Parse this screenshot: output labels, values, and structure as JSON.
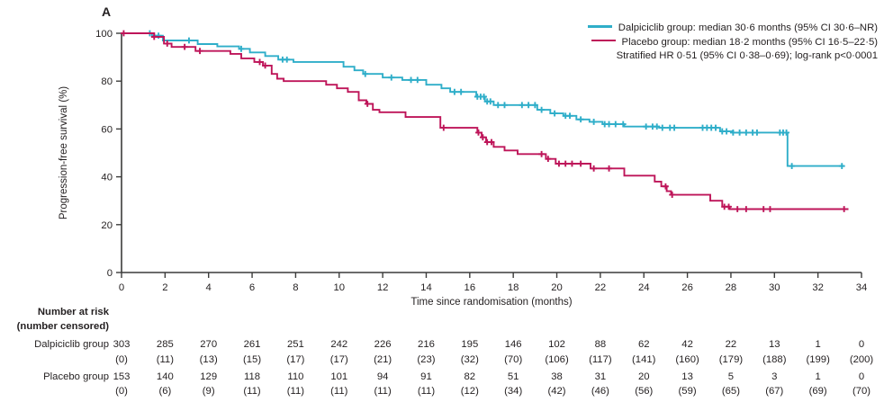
{
  "panel_label": "A",
  "colors": {
    "dalpiciclib": "#2FAEC9",
    "placebo": "#BE1559",
    "axis": "#3c3c3b",
    "text": "#231f20"
  },
  "legend": {
    "line1": "Dalpiciclib group: median 30·6 months (95% CI 30·6–NR)",
    "line2": "Placebo group: median 18·2 months (95% CI 16·5–22·5)",
    "line3": "Stratified HR 0·51 (95% CI 0·38–0·69); log-rank p<0·0001"
  },
  "axes": {
    "y_label": "Progression-free survival (%)",
    "x_label": "Time since randomisation (months)",
    "y_ticks": [
      0,
      20,
      40,
      60,
      80,
      100
    ],
    "x_ticks": [
      0,
      2,
      4,
      6,
      8,
      10,
      12,
      14,
      16,
      18,
      20,
      22,
      24,
      26,
      28,
      30,
      32,
      34
    ],
    "x_range": [
      0,
      34
    ],
    "y_range": [
      0,
      100
    ]
  },
  "chart_data": {
    "type": "line",
    "subtype": "kaplan-meier-step",
    "title": "",
    "xlabel": "Time since randomisation (months)",
    "ylabel": "Progression-free survival (%)",
    "xlim": [
      0,
      34
    ],
    "ylim": [
      0,
      100
    ],
    "grid": false,
    "legend_position": "top-right",
    "series": [
      {
        "name": "Dalpiciclib group",
        "color": "#2FAEC9",
        "steps": [
          [
            0,
            100
          ],
          [
            1.4,
            99
          ],
          [
            1.9,
            97
          ],
          [
            3.5,
            95.5
          ],
          [
            4.4,
            94.5
          ],
          [
            5.4,
            93.5
          ],
          [
            5.9,
            92
          ],
          [
            6.6,
            90.5
          ],
          [
            7.2,
            89
          ],
          [
            7.9,
            88
          ],
          [
            10.2,
            86
          ],
          [
            10.7,
            84.5
          ],
          [
            11.1,
            83
          ],
          [
            12,
            81.5
          ],
          [
            12.9,
            80.5
          ],
          [
            14,
            78.5
          ],
          [
            14.7,
            77
          ],
          [
            15.1,
            75.5
          ],
          [
            16.3,
            73.5
          ],
          [
            16.7,
            71.5
          ],
          [
            17.1,
            70
          ],
          [
            19.1,
            68
          ],
          [
            19.7,
            66.5
          ],
          [
            20.3,
            65.5
          ],
          [
            20.9,
            64
          ],
          [
            21.5,
            63
          ],
          [
            22.1,
            62
          ],
          [
            23.1,
            61
          ],
          [
            24.7,
            60.5
          ],
          [
            27.5,
            59
          ],
          [
            28.1,
            58.5
          ],
          [
            30.6,
            44.5
          ],
          [
            33.2,
            44.5
          ]
        ],
        "censor_times": [
          1.3,
          1.7,
          3.1,
          5.5,
          7.4,
          7.6,
          11.2,
          12.4,
          13.3,
          13.6,
          15.3,
          15.6,
          16.35,
          16.5,
          16.65,
          16.8,
          16.95,
          17.3,
          17.6,
          18.4,
          18.7,
          19.0,
          19.3,
          19.9,
          20.4,
          20.6,
          21.1,
          21.7,
          22.2,
          22.4,
          22.7,
          23.05,
          24.1,
          24.4,
          24.6,
          24.85,
          25.2,
          25.4,
          26.7,
          26.9,
          27.1,
          27.3,
          27.6,
          27.8,
          28.1,
          28.4,
          28.7,
          29.0,
          29.2,
          30.25,
          30.4,
          30.55,
          30.8,
          33.1
        ]
      },
      {
        "name": "Placebo group",
        "color": "#BE1559",
        "steps": [
          [
            0,
            100
          ],
          [
            1.5,
            98.5
          ],
          [
            1.95,
            95.7
          ],
          [
            2.3,
            94.3
          ],
          [
            3.4,
            92.6
          ],
          [
            5.0,
            91.4
          ],
          [
            5.5,
            89.5
          ],
          [
            6.1,
            88
          ],
          [
            6.5,
            86.5
          ],
          [
            6.9,
            83
          ],
          [
            7.15,
            81
          ],
          [
            7.45,
            80
          ],
          [
            9.4,
            78.5
          ],
          [
            9.9,
            77
          ],
          [
            10.4,
            75.5
          ],
          [
            10.9,
            72
          ],
          [
            11.25,
            70.5
          ],
          [
            11.55,
            68
          ],
          [
            11.85,
            67
          ],
          [
            13.05,
            65
          ],
          [
            14.65,
            60.5
          ],
          [
            16.35,
            58.5
          ],
          [
            16.55,
            56.5
          ],
          [
            16.75,
            54.5
          ],
          [
            17.1,
            52.5
          ],
          [
            17.6,
            51
          ],
          [
            18.2,
            49.5
          ],
          [
            19.5,
            47.5
          ],
          [
            19.95,
            45.5
          ],
          [
            21.55,
            43.5
          ],
          [
            23.1,
            40.5
          ],
          [
            24.5,
            38
          ],
          [
            24.8,
            36
          ],
          [
            25.05,
            34
          ],
          [
            25.25,
            32.5
          ],
          [
            27.05,
            30
          ],
          [
            27.6,
            27.5
          ],
          [
            27.95,
            26.5
          ],
          [
            33.4,
            26.5
          ]
        ],
        "censor_times": [
          0.1,
          1.5,
          2.1,
          2.9,
          3.6,
          6.35,
          6.6,
          11.3,
          14.8,
          16.4,
          16.6,
          16.8,
          17.0,
          19.3,
          19.6,
          20.1,
          20.4,
          20.7,
          21.1,
          21.7,
          22.4,
          25.0,
          25.3,
          27.7,
          27.9,
          28.3,
          28.7,
          29.5,
          29.8,
          33.2
        ]
      }
    ]
  },
  "risk_table": {
    "header_line1": "Number at risk",
    "header_line2": "(number censored)",
    "timepoints": [
      0,
      2,
      4,
      6,
      8,
      10,
      12,
      14,
      16,
      18,
      20,
      22,
      24,
      26,
      28,
      30,
      32,
      34
    ],
    "rows": [
      {
        "label": "Dalpiciclib group",
        "at_risk": [
          "303",
          "285",
          "270",
          "261",
          "251",
          "242",
          "226",
          "216",
          "195",
          "146",
          "102",
          "88",
          "62",
          "42",
          "22",
          "13",
          "1",
          "0"
        ],
        "censored": [
          "(0)",
          "(11)",
          "(13)",
          "(15)",
          "(17)",
          "(17)",
          "(21)",
          "(23)",
          "(32)",
          "(70)",
          "(106)",
          "(117)",
          "(141)",
          "(160)",
          "(179)",
          "(188)",
          "(199)",
          "(200)"
        ]
      },
      {
        "label": "Placebo group",
        "at_risk": [
          "153",
          "140",
          "129",
          "118",
          "110",
          "101",
          "94",
          "91",
          "82",
          "51",
          "38",
          "31",
          "20",
          "13",
          "5",
          "3",
          "1",
          "0"
        ],
        "censored": [
          "(0)",
          "(6)",
          "(9)",
          "(11)",
          "(11)",
          "(11)",
          "(11)",
          "(11)",
          "(12)",
          "(34)",
          "(42)",
          "(46)",
          "(56)",
          "(59)",
          "(65)",
          "(67)",
          "(69)",
          "(70)"
        ]
      }
    ]
  }
}
